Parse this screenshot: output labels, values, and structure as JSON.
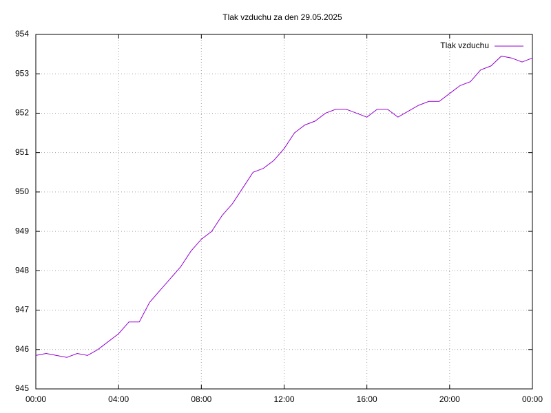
{
  "chart_data": {
    "type": "line",
    "title": "Tlak vzduchu za den 29.05.2025",
    "x": [
      0,
      0.5,
      1,
      1.5,
      2,
      2.5,
      3,
      3.5,
      4,
      4.5,
      5,
      5.5,
      6,
      6.5,
      7,
      7.5,
      8,
      8.5,
      9,
      9.5,
      10,
      10.5,
      11,
      11.5,
      12,
      12.5,
      13,
      13.5,
      14,
      14.5,
      15,
      15.5,
      16,
      16.5,
      17,
      17.5,
      18,
      18.5,
      19,
      19.5,
      20,
      20.5,
      21,
      21.5,
      22,
      22.5,
      23,
      23.5,
      24
    ],
    "series": [
      {
        "name": "Tlak vzduchu",
        "color": "#9400d3",
        "values": [
          945.85,
          945.9,
          945.85,
          945.8,
          945.9,
          945.85,
          946.0,
          946.2,
          946.4,
          946.7,
          946.7,
          947.2,
          947.5,
          947.8,
          948.1,
          948.5,
          948.8,
          949.0,
          949.4,
          949.7,
          950.1,
          950.5,
          950.6,
          950.8,
          951.1,
          951.5,
          951.7,
          951.8,
          952.0,
          952.1,
          952.1,
          952.0,
          951.9,
          952.1,
          952.1,
          951.9,
          952.05,
          952.2,
          952.3,
          952.3,
          952.5,
          952.7,
          952.8,
          953.1,
          953.2,
          953.45,
          953.4,
          953.3,
          953.4
        ]
      }
    ],
    "xlim": [
      0,
      24
    ],
    "xticks": [
      {
        "value": 0,
        "label": "00:00"
      },
      {
        "value": 4,
        "label": "04:00"
      },
      {
        "value": 8,
        "label": "08:00"
      },
      {
        "value": 12,
        "label": "12:00"
      },
      {
        "value": 16,
        "label": "16:00"
      },
      {
        "value": 20,
        "label": "20:00"
      },
      {
        "value": 24,
        "label": "00:00"
      }
    ],
    "ylim": [
      945,
      954
    ],
    "yticks": [
      945,
      946,
      947,
      948,
      949,
      950,
      951,
      952,
      953,
      954
    ],
    "grid": true,
    "legend": "top-right"
  }
}
